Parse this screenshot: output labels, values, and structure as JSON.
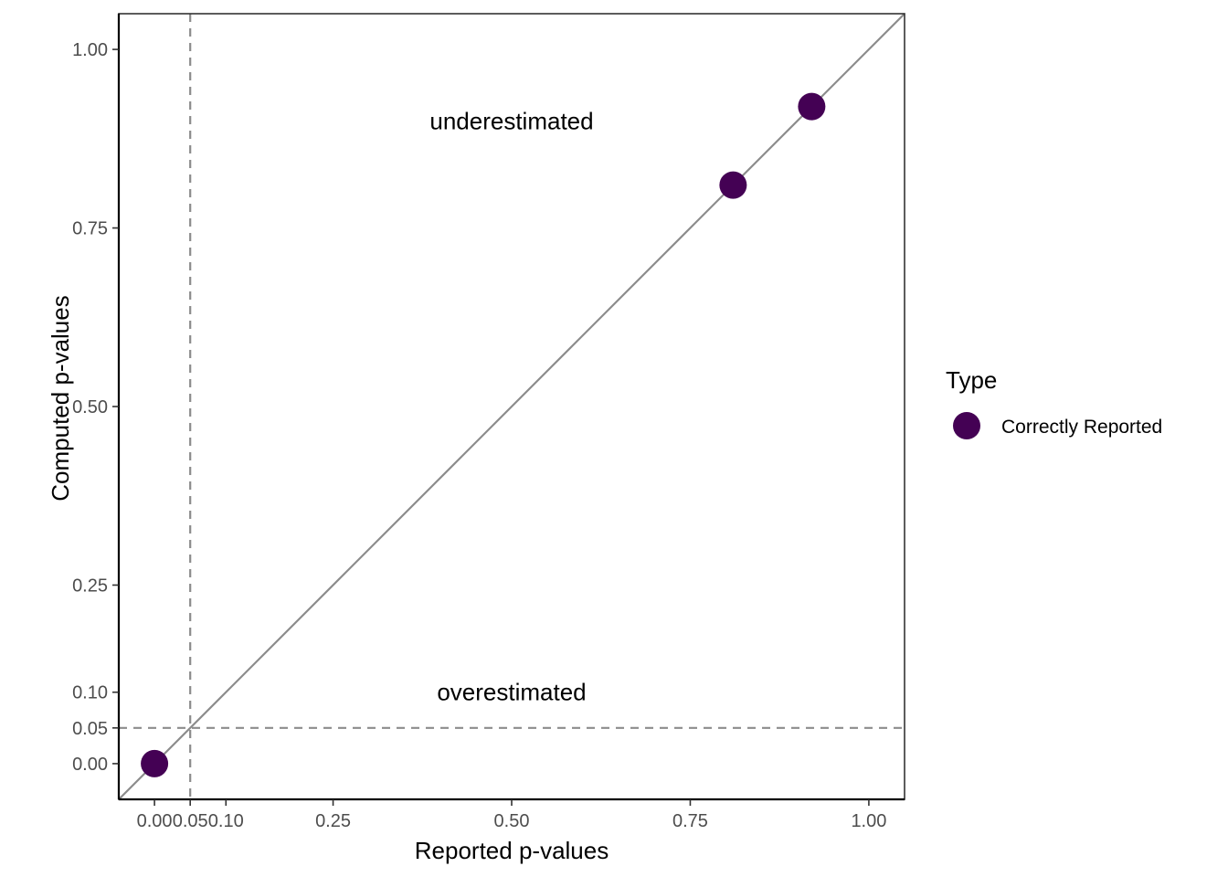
{
  "chart_data": {
    "type": "scatter",
    "xlabel": "Reported p-values",
    "ylabel": "Computed p-values",
    "xlim": [
      -0.05,
      1.05
    ],
    "ylim": [
      -0.05,
      1.05
    ],
    "x_ticks": [
      0.0,
      0.05,
      0.1,
      0.25,
      0.5,
      0.75,
      1.0
    ],
    "x_tick_labels": [
      "0.00",
      "0.05",
      "0.10",
      "0.25",
      "0.50",
      "0.75",
      "1.00"
    ],
    "y_ticks": [
      0.0,
      0.05,
      0.1,
      0.25,
      0.5,
      0.75,
      1.0
    ],
    "y_tick_labels": [
      "0.00",
      "0.05",
      "0.10",
      "0.25",
      "0.50",
      "0.75",
      "1.00"
    ],
    "grid": false,
    "reference_lines": {
      "diagonal": "y = x",
      "vertical_dashed_x": 0.05,
      "horizontal_dashed_y": 0.05,
      "color": "#8c8c8c"
    },
    "annotations": [
      {
        "text": "underestimated",
        "x": 0.5,
        "y": 0.9
      },
      {
        "text": "overestimated",
        "x": 0.5,
        "y": 0.1
      }
    ],
    "series": [
      {
        "name": "Correctly Reported",
        "color": "#440154",
        "points": [
          {
            "x": 0.0,
            "y": 0.0
          },
          {
            "x": 0.81,
            "y": 0.81
          },
          {
            "x": 0.92,
            "y": 0.92
          }
        ]
      }
    ],
    "legend": {
      "title": "Type",
      "position": "right",
      "entries": [
        {
          "label": "Correctly Reported",
          "color": "#440154"
        }
      ]
    }
  }
}
